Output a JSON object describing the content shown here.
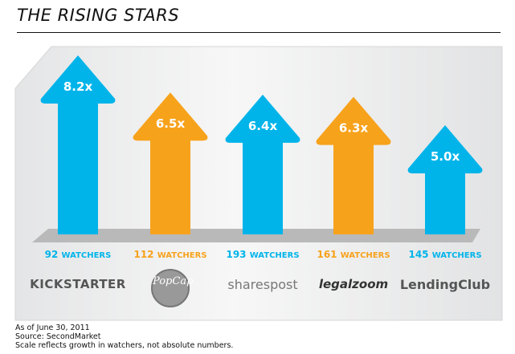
{
  "chart_data": {
    "type": "bar",
    "title": "THE RISING STARS",
    "categories": [
      "Kickstarter",
      "PopCap",
      "SharesPost",
      "LegalZoom",
      "LendingClub"
    ],
    "values": [
      8.2,
      6.5,
      6.4,
      6.3,
      5.0
    ],
    "value_labels": [
      "8.2x",
      "6.5x",
      "6.4x",
      "6.3x",
      "5.0x"
    ],
    "watchers": [
      "92",
      "112",
      "193",
      "161",
      "145"
    ],
    "watchers_unit": "WATCHERS",
    "logos": [
      "KICKSTARTER",
      "PopCap",
      "sharespost",
      "legalzoom",
      "LendingClub"
    ],
    "colors": [
      "#00b4ea",
      "#f7a21b",
      "#00b4ea",
      "#f7a21b",
      "#00b4ea"
    ],
    "xlabel": "",
    "ylabel": "",
    "ylim": [
      0,
      8.2
    ]
  },
  "notes": [
    "As of June 30, 2011",
    "Source: SecondMarket",
    "Scale reflects growth in watchers, not absolute numbers."
  ]
}
